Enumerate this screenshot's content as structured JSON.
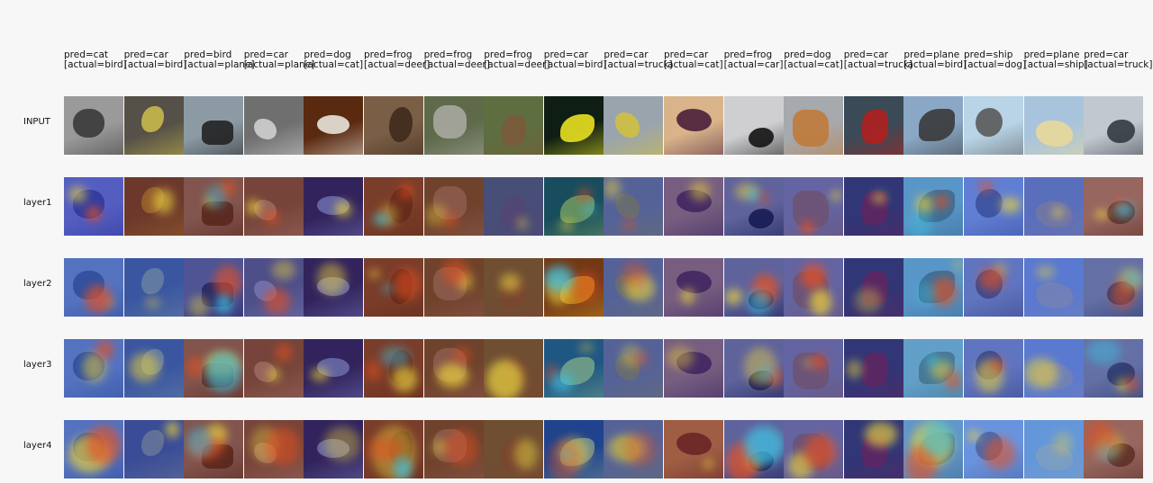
{
  "columns": [
    {
      "pred": "pred=cat",
      "actual": "[actual=bird]"
    },
    {
      "pred": "pred=car",
      "actual": "[actual=bird]"
    },
    {
      "pred": "pred=bird",
      "actual": "[actual=plane]"
    },
    {
      "pred": "pred=car",
      "actual": "[actual=plane]"
    },
    {
      "pred": "pred=dog",
      "actual": "[actual=cat]"
    },
    {
      "pred": "pred=frog",
      "actual": "[actual=deer]"
    },
    {
      "pred": "pred=frog",
      "actual": "[actual=deer]"
    },
    {
      "pred": "pred=frog",
      "actual": "[actual=deer]"
    },
    {
      "pred": "pred=car",
      "actual": "[actual=bird]"
    },
    {
      "pred": "pred=car",
      "actual": "[actual=truck]"
    },
    {
      "pred": "pred=car",
      "actual": "[actual=cat]"
    },
    {
      "pred": "pred=frog",
      "actual": "[actual=car]"
    },
    {
      "pred": "pred=dog",
      "actual": "[actual=cat]"
    },
    {
      "pred": "pred=car",
      "actual": "[actual=truck]"
    },
    {
      "pred": "pred=plane",
      "actual": "[actual=bird]"
    },
    {
      "pred": "pred=ship",
      "actual": "[actual=dog]"
    },
    {
      "pred": "pred=plane",
      "actual": "[actual=ship]"
    },
    {
      "pred": "pred=car",
      "actual": "[actual=truck]"
    }
  ],
  "rows": [
    {
      "label": "INPUT"
    },
    {
      "label": "layer1"
    },
    {
      "label": "layer2"
    },
    {
      "label": "layer3"
    },
    {
      "label": "layer4"
    }
  ],
  "input_colors": [
    [
      "#9a9a9a",
      "#3a3a3a"
    ],
    [
      "#555048",
      "#c8b84a"
    ],
    [
      "#8c9aa4",
      "#222222"
    ],
    [
      "#6f6f6f",
      "#cfcfcf"
    ],
    [
      "#5a2a10",
      "#e8e4dc"
    ],
    [
      "#7a5e46",
      "#3e2a1c"
    ],
    [
      "#5e6a4a",
      "#a8a8a0"
    ],
    [
      "#5e6e40",
      "#7a5a3a"
    ],
    [
      "#0e1e14",
      "#e8e020"
    ],
    [
      "#9aa4ae",
      "#d0c040"
    ],
    [
      "#d9b48a",
      "#4a1e3a"
    ],
    [
      "#cfcfd2",
      "#141414"
    ],
    [
      "#a6a9ad",
      "#c07a3a"
    ],
    [
      "#3a4a56",
      "#b02020"
    ],
    [
      "#8aa8c6",
      "#3a3a3a"
    ],
    [
      "#b8d4e6",
      "#5a5a5a"
    ],
    [
      "#a8c4dc",
      "#e8d89a"
    ],
    [
      "#c2c8d0",
      "#333a40"
    ]
  ],
  "layer_tints": [
    [
      "#2a3ad8",
      "#7a2a1a",
      "#7a2a1a",
      "#7a2a1a",
      "#1a1e8a",
      "#7a2a1a",
      "#7a2a1a",
      "#3a3a9a",
      "#1e6a8a",
      "#2a3a8a",
      "#3a2a7a",
      "#1a207a",
      "#3a3a9a",
      "#2a2a8a",
      "#3a8aca",
      "#2a4ac8",
      "#2a3aa8",
      "#7a2a1a"
    ],
    [
      "#2a5ad8",
      "#2a5ad8",
      "#2a2a8a",
      "#3a3a9a",
      "#1a1e8a",
      "#7a2a1a",
      "#7a2a1a",
      "#7a3a2a",
      "#b04a1a",
      "#2a3a8a",
      "#3a2a7a",
      "#1a207a",
      "#3a3a9a",
      "#2a2a8a",
      "#3a8aca",
      "#2a3aa8",
      "#2a4ac8",
      "#2a3a8a"
    ],
    [
      "#2a5ad8",
      "#2a5ad8",
      "#7a2a1a",
      "#7a2a1a",
      "#1a1e8a",
      "#7a2a1a",
      "#7a2a1a",
      "#7a3a2a",
      "#2a7ac8",
      "#2a3a8a",
      "#3a2a7a",
      "#1a207a",
      "#3a3a9a",
      "#2a2a8a",
      "#4a9aca",
      "#2a3aa8",
      "#2a4ac8",
      "#2a3a8a"
    ],
    [
      "#2a5ad8",
      "#2a4ac8",
      "#7a2a1a",
      "#7a2a1a",
      "#1a1e8a",
      "#7a2a1a",
      "#7a2a1a",
      "#7a3a2a",
      "#2a5ad8",
      "#2a3a8a",
      "#7a2a1a",
      "#1a207a",
      "#3a3a9a",
      "#2a2a8a",
      "#4a8aca",
      "#3a6ad8",
      "#3a7ad8",
      "#7a2a1a"
    ]
  ],
  "layer_hotspot_colors": [
    "#e8d040",
    "#e85020",
    "#40c0e0"
  ]
}
